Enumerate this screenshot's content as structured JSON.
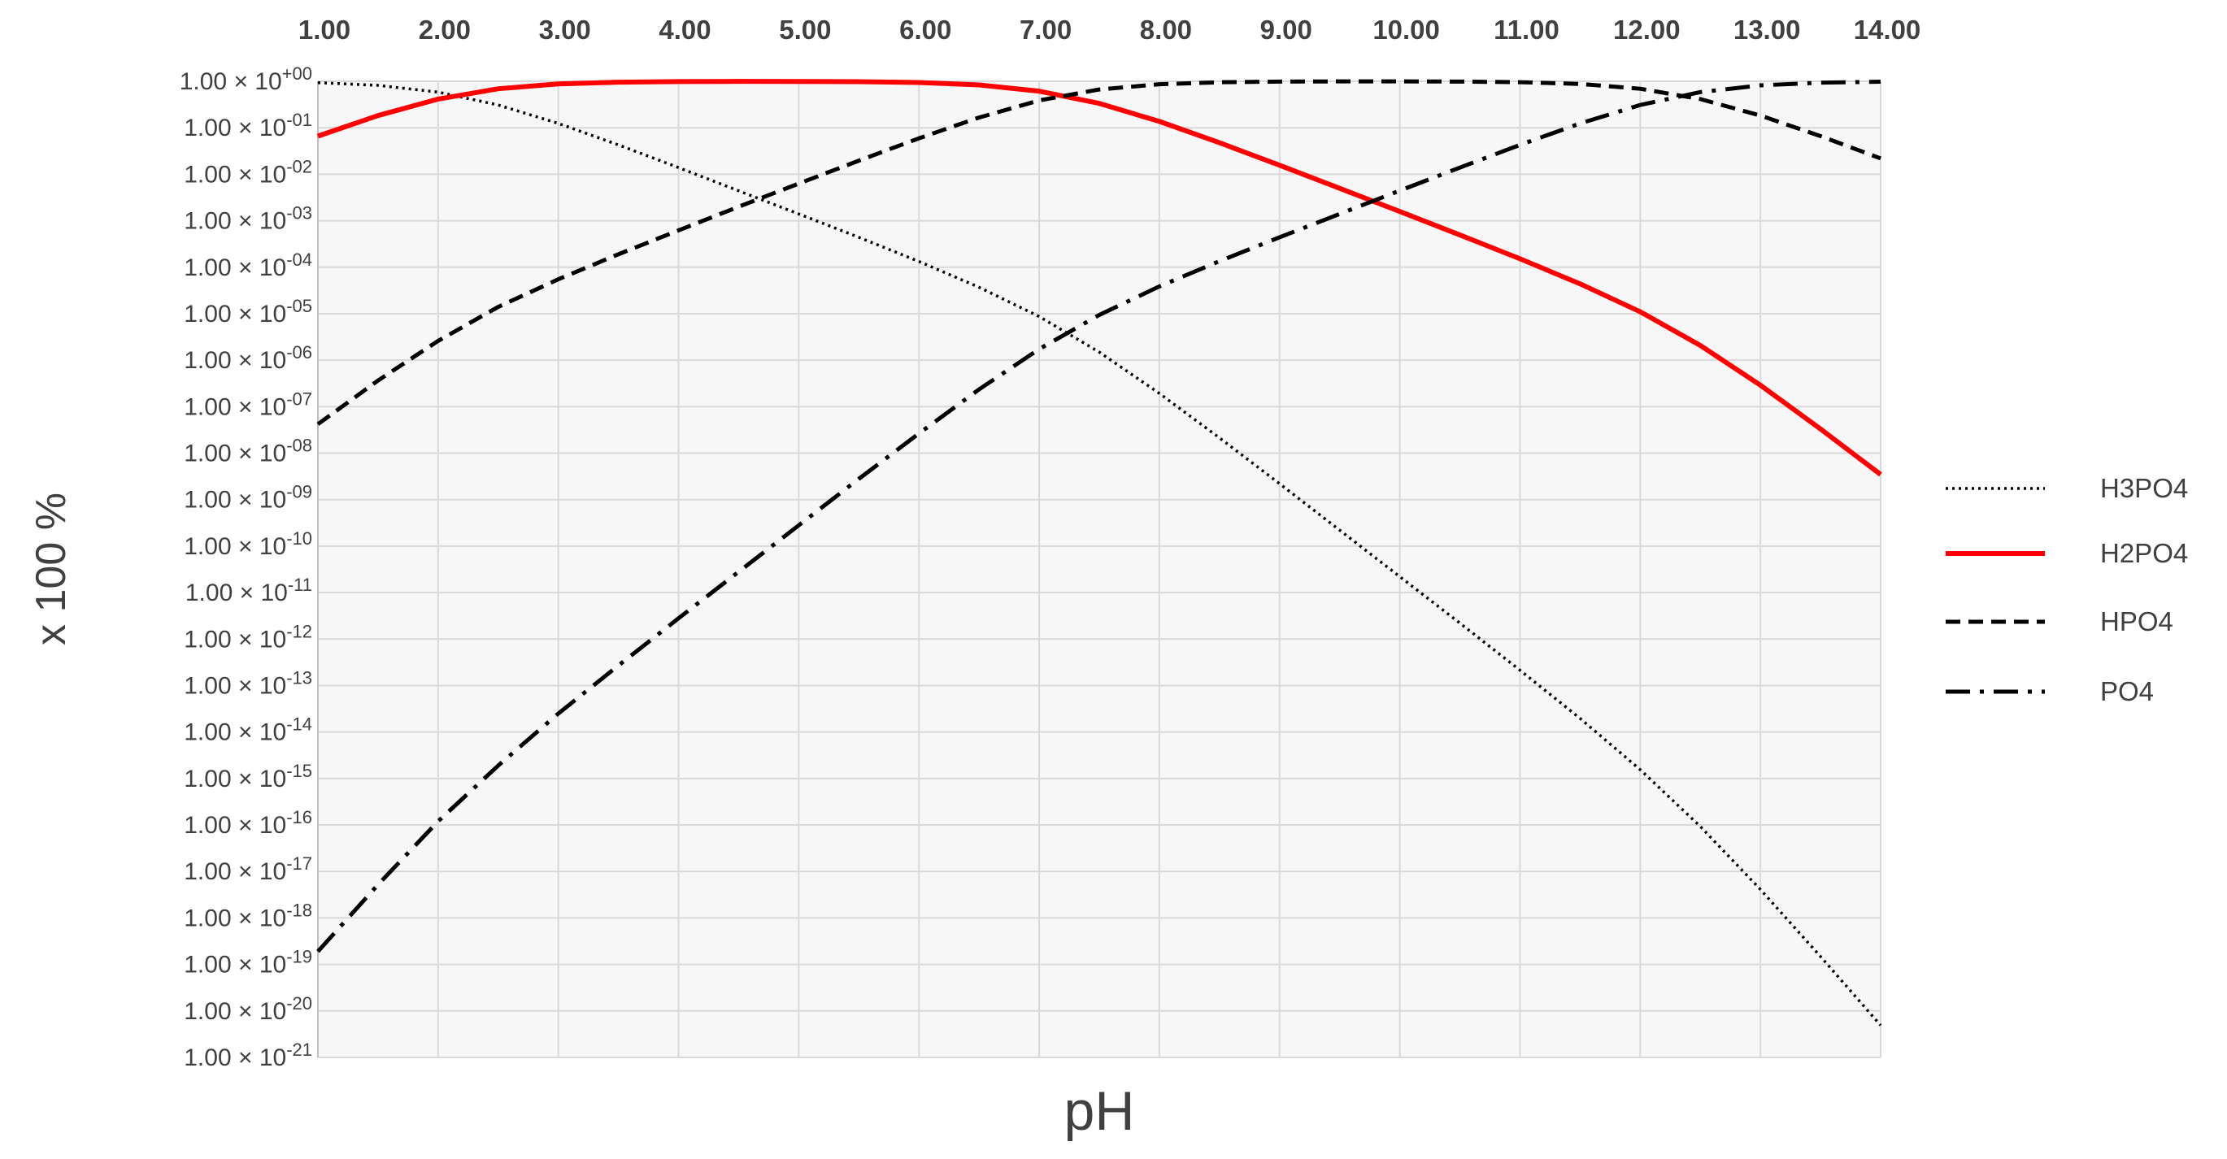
{
  "chart_data": {
    "type": "line",
    "x_label": "pH",
    "y_label": "x 100 %",
    "yscale": "log",
    "grid": true,
    "legend": "right",
    "x": [
      1,
      1.5,
      2,
      2.5,
      3,
      3.5,
      4,
      4.5,
      5,
      5.5,
      6,
      6.5,
      7,
      7.5,
      8,
      8.5,
      9,
      9.5,
      10,
      10.5,
      11,
      11.5,
      12,
      12.5,
      13,
      13.5,
      14
    ],
    "series": [
      {
        "name": "H3PO4",
        "color": "#000000",
        "dash": "dotted",
        "values": [
          0.934,
          0.817,
          0.585,
          0.309,
          0.124,
          0.0428,
          0.0139,
          0.0044,
          0.0014,
          0.00044,
          0.000133,
          3.7e-05,
          8.7e-06,
          1.49e-06,
          1.93e-07,
          2.13e-08,
          2.2e-09,
          2.2e-10,
          2.2e-11,
          2.2e-12,
          2.14e-13,
          1.96e-14,
          1.55e-15,
          9.3e-17,
          4.1e-18,
          1.48e-19,
          4.9e-21
        ]
      },
      {
        "name": "H2PO4",
        "color": "#ff0000",
        "dash": "solid",
        "values": [
          0.066,
          0.183,
          0.414,
          0.691,
          0.876,
          0.957,
          0.985,
          0.994,
          0.992,
          0.98,
          0.941,
          0.834,
          0.613,
          0.334,
          0.137,
          0.0477,
          0.0156,
          0.00498,
          0.00158,
          0.000494,
          0.000152,
          4.39e-05,
          1.1e-05,
          2.08e-06,
          2.9e-07,
          3.31e-08,
          3.47e-09
        ]
      },
      {
        "name": "HPO4",
        "color": "#000000",
        "dash": "dashed",
        "values": [
          4.2e-08,
          3.65e-07,
          2.6e-06,
          1.4e-05,
          5.5e-05,
          0.00019,
          0.00062,
          0.002,
          0.0063,
          0.0196,
          0.0593,
          0.166,
          0.387,
          0.666,
          0.863,
          0.952,
          0.984,
          0.9936,
          0.994,
          0.9856,
          0.957,
          0.876,
          0.691,
          0.414,
          0.183,
          0.0661,
          0.0219
        ]
      },
      {
        "name": "PO4",
        "color": "#000000",
        "dash": "dashdot",
        "values": [
          1.9e-19,
          5.2e-18,
          1.2e-16,
          1.9e-15,
          2.5e-14,
          2.7e-13,
          2.8e-12,
          2.8e-11,
          2.8e-10,
          2.8e-09,
          2.65e-08,
          2.35e-07,
          1.73e-06,
          9.4e-06,
          3.86e-05,
          0.000135,
          0.00044,
          0.0014,
          0.00444,
          0.0139,
          0.0428,
          0.124,
          0.309,
          0.585,
          0.817,
          0.934,
          0.978
        ]
      }
    ],
    "xlim": [
      1,
      14
    ],
    "xticks": [
      {
        "value": 1,
        "label": "1.00"
      },
      {
        "value": 2,
        "label": "2.00"
      },
      {
        "value": 3,
        "label": "3.00"
      },
      {
        "value": 4,
        "label": "4.00"
      },
      {
        "value": 5,
        "label": "5.00"
      },
      {
        "value": 6,
        "label": "6.00"
      },
      {
        "value": 7,
        "label": "7.00"
      },
      {
        "value": 8,
        "label": "8.00"
      },
      {
        "value": 9,
        "label": "9.00"
      },
      {
        "value": 10,
        "label": "10.00"
      },
      {
        "value": 11,
        "label": "11.00"
      },
      {
        "value": 12,
        "label": "12.00"
      },
      {
        "value": 13,
        "label": "13.00"
      },
      {
        "value": 14,
        "label": "14.00"
      }
    ],
    "ylim": [
      1e-21,
      1
    ],
    "yticks": [
      {
        "value": 1,
        "label": "1.00 × 10",
        "sup": "+00"
      },
      {
        "value": 0.1,
        "label": "1.00 × 10",
        "sup": "-01"
      },
      {
        "value": 0.01,
        "label": "1.00 × 10",
        "sup": "-02"
      },
      {
        "value": 0.001,
        "label": "1.00 × 10",
        "sup": "-03"
      },
      {
        "value": 0.0001,
        "label": "1.00 × 10",
        "sup": "-04"
      },
      {
        "value": 1e-05,
        "label": "1.00 × 10",
        "sup": "-05"
      },
      {
        "value": 1e-06,
        "label": "1.00 × 10",
        "sup": "-06"
      },
      {
        "value": 1e-07,
        "label": "1.00 × 10",
        "sup": "-07"
      },
      {
        "value": 1e-08,
        "label": "1.00 × 10",
        "sup": "-08"
      },
      {
        "value": 1e-09,
        "label": "1.00 × 10",
        "sup": "-09"
      },
      {
        "value": 1e-10,
        "label": "1.00 × 10",
        "sup": "-10"
      },
      {
        "value": 1e-11,
        "label": "1.00 × 10",
        "sup": "-11"
      },
      {
        "value": 1e-12,
        "label": "1.00 × 10",
        "sup": "-12"
      },
      {
        "value": 1e-13,
        "label": "1.00 × 10",
        "sup": "-13"
      },
      {
        "value": 1e-14,
        "label": "1.00 × 10",
        "sup": "-14"
      },
      {
        "value": 1e-15,
        "label": "1.00 × 10",
        "sup": "-15"
      },
      {
        "value": 1e-16,
        "label": "1.00 × 10",
        "sup": "-16"
      },
      {
        "value": 1e-17,
        "label": "1.00 × 10",
        "sup": "-17"
      },
      {
        "value": 1e-18,
        "label": "1.00 × 10",
        "sup": "-18"
      },
      {
        "value": 1e-19,
        "label": "1.00 × 10",
        "sup": "-19"
      },
      {
        "value": 1e-20,
        "label": "1.00 × 10",
        "sup": "-20"
      },
      {
        "value": 1e-21,
        "label": "1.00 × 10",
        "sup": "-21"
      }
    ]
  }
}
